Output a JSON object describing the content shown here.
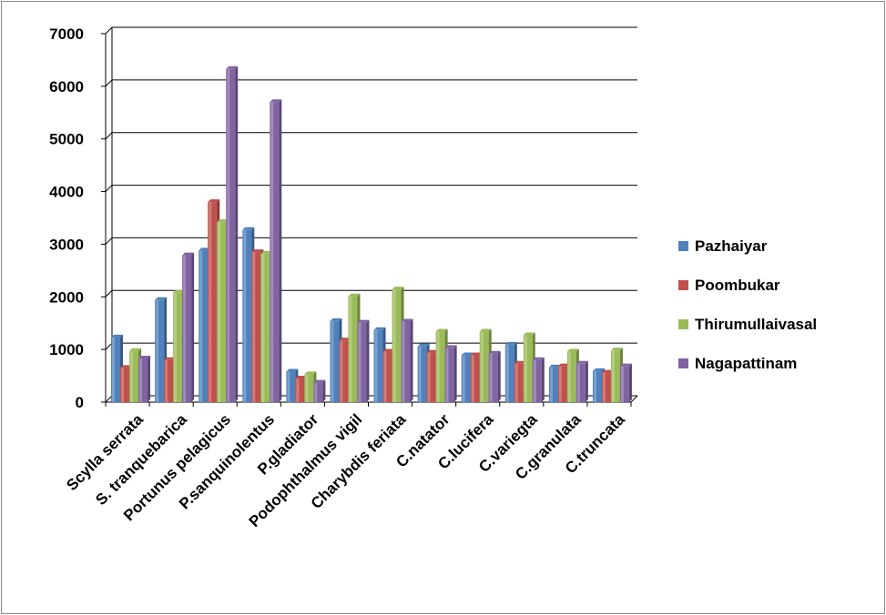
{
  "chart_data": {
    "type": "bar",
    "title": "",
    "xlabel": "",
    "ylabel": "",
    "ylim": [
      0,
      7000
    ],
    "yticks": [
      "0",
      "1000",
      "2000",
      "3000",
      "4000",
      "5000",
      "6000",
      "7000"
    ],
    "grid": true,
    "legend_position": "right",
    "categories": [
      "Scylla serrata",
      "S. tranquebarica",
      "Portunus pelagicus",
      "P.sanquinolentus",
      "P.gladiator",
      "Podophthalmus vigil",
      "Charybdis feriata",
      "C.natator",
      "C.lucifera",
      "C.variegta",
      "C.granulata",
      "C.truncata"
    ],
    "series": [
      {
        "name": "Pazhaiyar",
        "color": "#4f81bd",
        "values": [
          1230,
          1940,
          2880,
          3270,
          580,
          1540,
          1370,
          1060,
          890,
          1090,
          660,
          590
        ]
      },
      {
        "name": "Poombukar",
        "color": "#c0504d",
        "values": [
          650,
          800,
          3800,
          2850,
          450,
          1170,
          960,
          940,
          890,
          730,
          680,
          560
        ]
      },
      {
        "name": "Thirumullaivasal",
        "color": "#9bbb59",
        "values": [
          970,
          2080,
          3420,
          2820,
          530,
          2010,
          2140,
          1340,
          1340,
          1270,
          960,
          980
        ]
      },
      {
        "name": "Nagapattinam",
        "color": "#8064a2",
        "values": [
          830,
          2790,
          6330,
          5700,
          370,
          1510,
          1530,
          1030,
          920,
          800,
          730,
          680
        ]
      }
    ]
  }
}
